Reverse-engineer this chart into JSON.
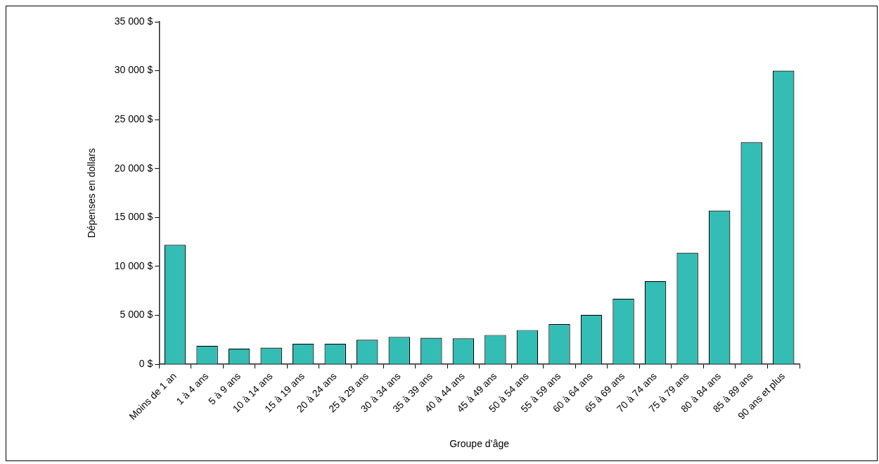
{
  "chart_data": {
    "type": "bar",
    "xlabel": "Groupe d’âge",
    "ylabel": "Dépenses en dollars",
    "categories": [
      "Moins de 1 an",
      "1 à 4 ans",
      "5 à 9 ans",
      "10 à 14 ans",
      "15 à 19 ans",
      "20 à 24 ans",
      "25 à 29 ans",
      "30 à 34 ans",
      "35 à 39 ans",
      "40 à 44 ans",
      "45 à 49 ans",
      "50 à 54 ans",
      "55 à 59 ans",
      "60 à 64 ans",
      "65 à 69 ans",
      "70 à 74 ans",
      "75 à 79 ans",
      "80 à 84 ans",
      "85 à 89 ans",
      "90 ans et plus"
    ],
    "values": [
      12200,
      1900,
      1600,
      1700,
      2100,
      2100,
      2500,
      2800,
      2700,
      2650,
      3000,
      3500,
      4100,
      5050,
      6700,
      8500,
      11400,
      15700,
      22700,
      30000
    ],
    "color": "#33bdb5",
    "ylim": [
      0,
      35000
    ],
    "yticks": [
      {
        "value": 0,
        "label": "0 $"
      },
      {
        "value": 5000,
        "label": "5 000 $"
      },
      {
        "value": 10000,
        "label": "10 000 $"
      },
      {
        "value": 15000,
        "label": "15 000 $"
      },
      {
        "value": 20000,
        "label": "20 000 $"
      },
      {
        "value": 25000,
        "label": "25 000 $"
      },
      {
        "value": 30000,
        "label": "30 000 $"
      },
      {
        "value": 35000,
        "label": "35 000 $"
      }
    ],
    "grid": false,
    "legend": false
  }
}
